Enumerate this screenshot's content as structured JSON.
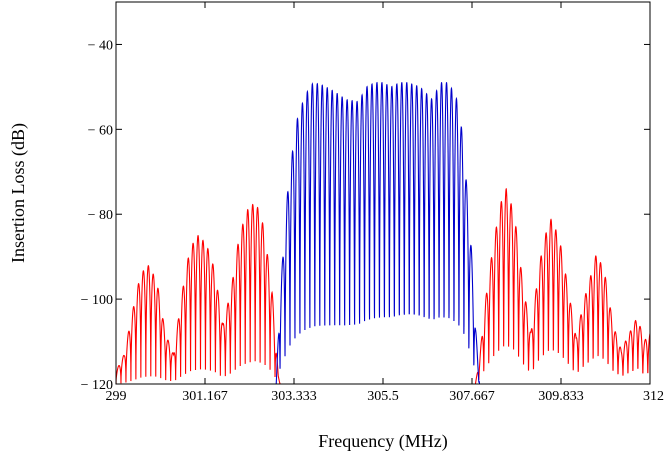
{
  "chart_data": {
    "type": "line",
    "title": "",
    "xlabel": "Frequency (MHz)",
    "ylabel": "Insertion Loss (dB)",
    "xlim": [
      299,
      312
    ],
    "ylim": [
      -120,
      -30
    ],
    "grid": false,
    "x_ticks": [
      {
        "value": 299,
        "label": "299"
      },
      {
        "value": 301.167,
        "label": "301.167"
      },
      {
        "value": 303.333,
        "label": "303.333"
      },
      {
        "value": 305.5,
        "label": "305.5"
      },
      {
        "value": 307.667,
        "label": "307.667"
      },
      {
        "value": 309.833,
        "label": "309.833"
      },
      {
        "value": 312,
        "label": "312"
      }
    ],
    "y_ticks": [
      {
        "value": -40,
        "label": "− 40"
      },
      {
        "value": -60,
        "label": "− 60"
      },
      {
        "value": -80,
        "label": "− 80"
      },
      {
        "value": -100,
        "label": "− 100"
      },
      {
        "value": -120,
        "label": "− 120"
      }
    ],
    "series": [
      {
        "color": "#ff0000",
        "lobe_period_mhz": 0.121,
        "envelope": [
          [
            299.0,
            -117
          ],
          [
            299.2,
            -113
          ],
          [
            299.4,
            -103
          ],
          [
            299.6,
            -94
          ],
          [
            299.8,
            -92
          ],
          [
            300.0,
            -96
          ],
          [
            300.2,
            -108
          ],
          [
            300.4,
            -113
          ],
          [
            300.6,
            -99
          ],
          [
            300.8,
            -88
          ],
          [
            301.0,
            -85
          ],
          [
            301.2,
            -87
          ],
          [
            301.4,
            -93
          ],
          [
            301.6,
            -106
          ],
          [
            301.8,
            -98
          ],
          [
            302.0,
            -85
          ],
          [
            302.2,
            -79
          ],
          [
            302.4,
            -77
          ],
          [
            302.6,
            -83
          ],
          [
            302.8,
            -98
          ],
          [
            302.95,
            -118
          ],
          [
            303.0,
            -120
          ],
          [
            307.75,
            -120
          ],
          [
            307.85,
            -114
          ],
          [
            308.0,
            -100
          ],
          [
            308.2,
            -86
          ],
          [
            308.4,
            -76
          ],
          [
            308.5,
            -74
          ],
          [
            308.7,
            -80
          ],
          [
            308.9,
            -96
          ],
          [
            309.1,
            -108
          ],
          [
            309.3,
            -92
          ],
          [
            309.5,
            -83
          ],
          [
            309.6,
            -81
          ],
          [
            309.8,
            -86
          ],
          [
            310.0,
            -97
          ],
          [
            310.2,
            -109
          ],
          [
            310.4,
            -100
          ],
          [
            310.6,
            -93
          ],
          [
            310.7,
            -89
          ],
          [
            310.9,
            -94
          ],
          [
            311.1,
            -106
          ],
          [
            311.3,
            -112
          ],
          [
            311.5,
            -108
          ],
          [
            311.7,
            -104
          ],
          [
            311.85,
            -110
          ],
          [
            312.0,
            -108
          ]
        ]
      },
      {
        "color": "#0000cc",
        "lobe_period_mhz": 0.121,
        "envelope": [
          [
            302.9,
            -120
          ],
          [
            303.0,
            -98
          ],
          [
            303.2,
            -72
          ],
          [
            303.4,
            -58
          ],
          [
            303.6,
            -52
          ],
          [
            303.8,
            -49
          ],
          [
            304.0,
            -49.5
          ],
          [
            304.3,
            -51
          ],
          [
            304.6,
            -53
          ],
          [
            304.9,
            -53.5
          ],
          [
            305.1,
            -50
          ],
          [
            305.3,
            -49
          ],
          [
            305.5,
            -49
          ],
          [
            305.7,
            -50
          ],
          [
            305.9,
            -49
          ],
          [
            306.1,
            -49
          ],
          [
            306.4,
            -50
          ],
          [
            306.7,
            -53
          ],
          [
            306.9,
            -49
          ],
          [
            307.1,
            -49
          ],
          [
            307.3,
            -53
          ],
          [
            307.45,
            -62
          ],
          [
            307.55,
            -75
          ],
          [
            307.65,
            -88
          ],
          [
            307.75,
            -106
          ],
          [
            307.85,
            -120
          ]
        ]
      }
    ]
  }
}
